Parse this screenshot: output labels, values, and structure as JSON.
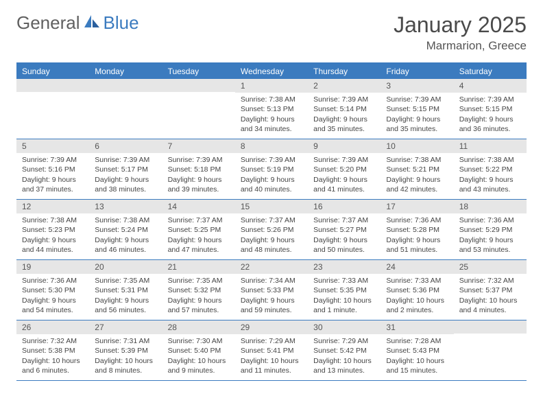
{
  "brand": {
    "part1": "General",
    "part2": "Blue"
  },
  "title": "January 2025",
  "location": "Marmarion, Greece",
  "colors": {
    "accent": "#3b7bbf",
    "header_bg": "#3b7bbf",
    "header_text": "#ffffff",
    "date_bar_bg": "#e6e6e6",
    "border": "#3b7bbf",
    "text": "#333333"
  },
  "weekdays": [
    "Sunday",
    "Monday",
    "Tuesday",
    "Wednesday",
    "Thursday",
    "Friday",
    "Saturday"
  ],
  "cells": [
    {
      "date": "",
      "sunrise": "",
      "sunset": "",
      "daylight": ""
    },
    {
      "date": "",
      "sunrise": "",
      "sunset": "",
      "daylight": ""
    },
    {
      "date": "",
      "sunrise": "",
      "sunset": "",
      "daylight": ""
    },
    {
      "date": "1",
      "sunrise": "Sunrise: 7:38 AM",
      "sunset": "Sunset: 5:13 PM",
      "daylight": "Daylight: 9 hours and 34 minutes."
    },
    {
      "date": "2",
      "sunrise": "Sunrise: 7:39 AM",
      "sunset": "Sunset: 5:14 PM",
      "daylight": "Daylight: 9 hours and 35 minutes."
    },
    {
      "date": "3",
      "sunrise": "Sunrise: 7:39 AM",
      "sunset": "Sunset: 5:15 PM",
      "daylight": "Daylight: 9 hours and 35 minutes."
    },
    {
      "date": "4",
      "sunrise": "Sunrise: 7:39 AM",
      "sunset": "Sunset: 5:15 PM",
      "daylight": "Daylight: 9 hours and 36 minutes."
    },
    {
      "date": "5",
      "sunrise": "Sunrise: 7:39 AM",
      "sunset": "Sunset: 5:16 PM",
      "daylight": "Daylight: 9 hours and 37 minutes."
    },
    {
      "date": "6",
      "sunrise": "Sunrise: 7:39 AM",
      "sunset": "Sunset: 5:17 PM",
      "daylight": "Daylight: 9 hours and 38 minutes."
    },
    {
      "date": "7",
      "sunrise": "Sunrise: 7:39 AM",
      "sunset": "Sunset: 5:18 PM",
      "daylight": "Daylight: 9 hours and 39 minutes."
    },
    {
      "date": "8",
      "sunrise": "Sunrise: 7:39 AM",
      "sunset": "Sunset: 5:19 PM",
      "daylight": "Daylight: 9 hours and 40 minutes."
    },
    {
      "date": "9",
      "sunrise": "Sunrise: 7:39 AM",
      "sunset": "Sunset: 5:20 PM",
      "daylight": "Daylight: 9 hours and 41 minutes."
    },
    {
      "date": "10",
      "sunrise": "Sunrise: 7:38 AM",
      "sunset": "Sunset: 5:21 PM",
      "daylight": "Daylight: 9 hours and 42 minutes."
    },
    {
      "date": "11",
      "sunrise": "Sunrise: 7:38 AM",
      "sunset": "Sunset: 5:22 PM",
      "daylight": "Daylight: 9 hours and 43 minutes."
    },
    {
      "date": "12",
      "sunrise": "Sunrise: 7:38 AM",
      "sunset": "Sunset: 5:23 PM",
      "daylight": "Daylight: 9 hours and 44 minutes."
    },
    {
      "date": "13",
      "sunrise": "Sunrise: 7:38 AM",
      "sunset": "Sunset: 5:24 PM",
      "daylight": "Daylight: 9 hours and 46 minutes."
    },
    {
      "date": "14",
      "sunrise": "Sunrise: 7:37 AM",
      "sunset": "Sunset: 5:25 PM",
      "daylight": "Daylight: 9 hours and 47 minutes."
    },
    {
      "date": "15",
      "sunrise": "Sunrise: 7:37 AM",
      "sunset": "Sunset: 5:26 PM",
      "daylight": "Daylight: 9 hours and 48 minutes."
    },
    {
      "date": "16",
      "sunrise": "Sunrise: 7:37 AM",
      "sunset": "Sunset: 5:27 PM",
      "daylight": "Daylight: 9 hours and 50 minutes."
    },
    {
      "date": "17",
      "sunrise": "Sunrise: 7:36 AM",
      "sunset": "Sunset: 5:28 PM",
      "daylight": "Daylight: 9 hours and 51 minutes."
    },
    {
      "date": "18",
      "sunrise": "Sunrise: 7:36 AM",
      "sunset": "Sunset: 5:29 PM",
      "daylight": "Daylight: 9 hours and 53 minutes."
    },
    {
      "date": "19",
      "sunrise": "Sunrise: 7:36 AM",
      "sunset": "Sunset: 5:30 PM",
      "daylight": "Daylight: 9 hours and 54 minutes."
    },
    {
      "date": "20",
      "sunrise": "Sunrise: 7:35 AM",
      "sunset": "Sunset: 5:31 PM",
      "daylight": "Daylight: 9 hours and 56 minutes."
    },
    {
      "date": "21",
      "sunrise": "Sunrise: 7:35 AM",
      "sunset": "Sunset: 5:32 PM",
      "daylight": "Daylight: 9 hours and 57 minutes."
    },
    {
      "date": "22",
      "sunrise": "Sunrise: 7:34 AM",
      "sunset": "Sunset: 5:33 PM",
      "daylight": "Daylight: 9 hours and 59 minutes."
    },
    {
      "date": "23",
      "sunrise": "Sunrise: 7:33 AM",
      "sunset": "Sunset: 5:35 PM",
      "daylight": "Daylight: 10 hours and 1 minute."
    },
    {
      "date": "24",
      "sunrise": "Sunrise: 7:33 AM",
      "sunset": "Sunset: 5:36 PM",
      "daylight": "Daylight: 10 hours and 2 minutes."
    },
    {
      "date": "25",
      "sunrise": "Sunrise: 7:32 AM",
      "sunset": "Sunset: 5:37 PM",
      "daylight": "Daylight: 10 hours and 4 minutes."
    },
    {
      "date": "26",
      "sunrise": "Sunrise: 7:32 AM",
      "sunset": "Sunset: 5:38 PM",
      "daylight": "Daylight: 10 hours and 6 minutes."
    },
    {
      "date": "27",
      "sunrise": "Sunrise: 7:31 AM",
      "sunset": "Sunset: 5:39 PM",
      "daylight": "Daylight: 10 hours and 8 minutes."
    },
    {
      "date": "28",
      "sunrise": "Sunrise: 7:30 AM",
      "sunset": "Sunset: 5:40 PM",
      "daylight": "Daylight: 10 hours and 9 minutes."
    },
    {
      "date": "29",
      "sunrise": "Sunrise: 7:29 AM",
      "sunset": "Sunset: 5:41 PM",
      "daylight": "Daylight: 10 hours and 11 minutes."
    },
    {
      "date": "30",
      "sunrise": "Sunrise: 7:29 AM",
      "sunset": "Sunset: 5:42 PM",
      "daylight": "Daylight: 10 hours and 13 minutes."
    },
    {
      "date": "31",
      "sunrise": "Sunrise: 7:28 AM",
      "sunset": "Sunset: 5:43 PM",
      "daylight": "Daylight: 10 hours and 15 minutes."
    },
    {
      "date": "",
      "sunrise": "",
      "sunset": "",
      "daylight": ""
    }
  ]
}
